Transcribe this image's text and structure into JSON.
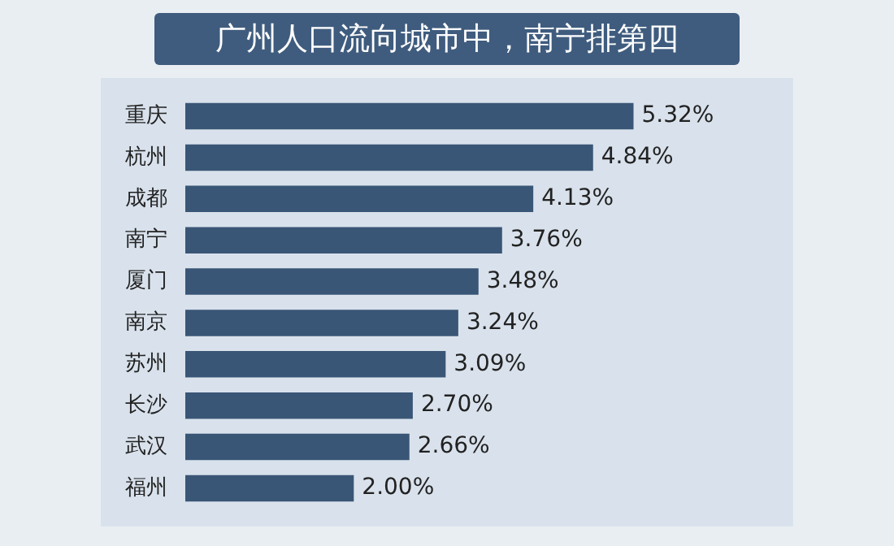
{
  "chart_data": {
    "type": "bar",
    "orientation": "horizontal",
    "title": "广州人口流向城市中，南宁排第四",
    "categories": [
      "重庆",
      "杭州",
      "成都",
      "南宁",
      "厦门",
      "南京",
      "苏州",
      "长沙",
      "武汉",
      "福州"
    ],
    "values": [
      5.32,
      4.84,
      4.13,
      3.76,
      3.48,
      3.24,
      3.09,
      2.7,
      2.66,
      2.0
    ],
    "value_labels": [
      "5.32%",
      "4.84%",
      "4.13%",
      "3.76%",
      "3.48%",
      "3.24%",
      "3.09%",
      "2.70%",
      "2.66%",
      "2.00%"
    ],
    "color": "#3a5676"
  }
}
